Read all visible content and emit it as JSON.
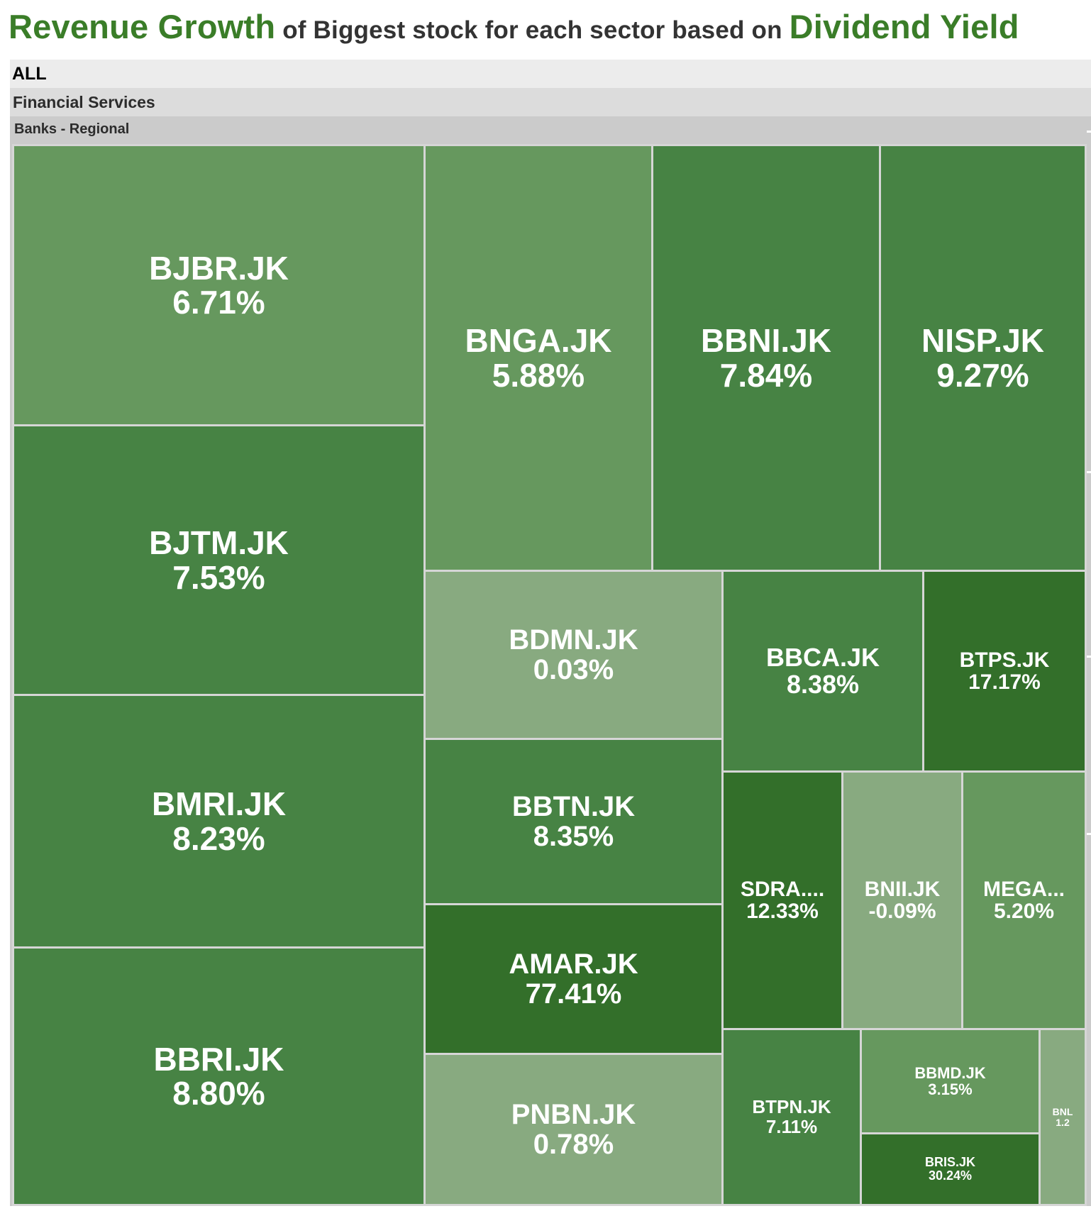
{
  "title": {
    "part1": "Revenue Growth",
    "part2": " of Biggest stock for each sector based on ",
    "part3": "Dividend Yield"
  },
  "hierarchy": {
    "root": "ALL",
    "sector": "Financial Services",
    "industry": "Banks - Regional"
  },
  "colors": {
    "highlight": "#3a7d28",
    "title_text": "#333333"
  },
  "chart_data": {
    "type": "treemap",
    "title": "Revenue Growth of Biggest stock for each sector based on Dividend Yield",
    "size_measure": "Dividend Yield",
    "color_measure": "Revenue Growth",
    "path": [
      "ALL",
      "Financial Services",
      "Banks - Regional"
    ],
    "items": [
      {
        "name": "BJBR.JK",
        "label": "BJBR.JK",
        "value_text": "6.71%",
        "revenue_growth": 6.71,
        "color": "#66985e"
      },
      {
        "name": "BJTM.JK",
        "label": "BJTM.JK",
        "value_text": "7.53%",
        "revenue_growth": 7.53,
        "color": "#478344"
      },
      {
        "name": "BMRI.JK",
        "label": "BMRI.JK",
        "value_text": "8.23%",
        "revenue_growth": 8.23,
        "color": "#478344"
      },
      {
        "name": "BBRI.JK",
        "label": "BBRI.JK",
        "value_text": "8.80%",
        "revenue_growth": 8.8,
        "color": "#478344"
      },
      {
        "name": "BNGA.JK",
        "label": "BNGA.JK",
        "value_text": "5.88%",
        "revenue_growth": 5.88,
        "color": "#66985e"
      },
      {
        "name": "BBNI.JK",
        "label": "BBNI.JK",
        "value_text": "7.84%",
        "revenue_growth": 7.84,
        "color": "#478344"
      },
      {
        "name": "NISP.JK",
        "label": "NISP.JK",
        "value_text": "9.27%",
        "revenue_growth": 9.27,
        "color": "#478344"
      },
      {
        "name": "BDMN.JK",
        "label": "BDMN.JK",
        "value_text": "0.03%",
        "revenue_growth": 0.03,
        "color": "#88aa80"
      },
      {
        "name": "BBTN.JK",
        "label": "BBTN.JK",
        "value_text": "8.35%",
        "revenue_growth": 8.35,
        "color": "#478344"
      },
      {
        "name": "AMAR.JK",
        "label": "AMAR.JK",
        "value_text": "77.41%",
        "revenue_growth": 77.41,
        "color": "#336f2a"
      },
      {
        "name": "PNBN.JK",
        "label": "PNBN.JK",
        "value_text": "0.78%",
        "revenue_growth": 0.78,
        "color": "#88aa80"
      },
      {
        "name": "BBCA.JK",
        "label": "BBCA.JK",
        "value_text": "8.38%",
        "revenue_growth": 8.38,
        "color": "#478344"
      },
      {
        "name": "BTPS.JK",
        "label": "BTPS.JK",
        "value_text": "17.17%",
        "revenue_growth": 17.17,
        "color": "#336f2a"
      },
      {
        "name": "SDRA.JK",
        "label": "SDRA....",
        "value_text": "12.33%",
        "revenue_growth": 12.33,
        "color": "#336f2a"
      },
      {
        "name": "BNII.JK",
        "label": "BNII.JK",
        "value_text": "-0.09%",
        "revenue_growth": -0.09,
        "color": "#88aa80"
      },
      {
        "name": "MEGA.JK",
        "label": "MEGA...",
        "value_text": "5.20%",
        "revenue_growth": 5.2,
        "color": "#66985e"
      },
      {
        "name": "BTPN.JK",
        "label": "BTPN.JK",
        "value_text": "7.11%",
        "revenue_growth": 7.11,
        "color": "#478344"
      },
      {
        "name": "BBMD.JK",
        "label": "BBMD.JK",
        "value_text": "3.15%",
        "revenue_growth": 3.15,
        "color": "#66985e"
      },
      {
        "name": "BRIS.JK",
        "label": "BRIS.JK",
        "value_text": "30.24%",
        "revenue_growth": 30.24,
        "color": "#336f2a"
      },
      {
        "name": "BNLI.JK",
        "label": "BNL",
        "value_text": "1.2",
        "revenue_growth": 1.2,
        "color": "#88aa80"
      }
    ]
  }
}
